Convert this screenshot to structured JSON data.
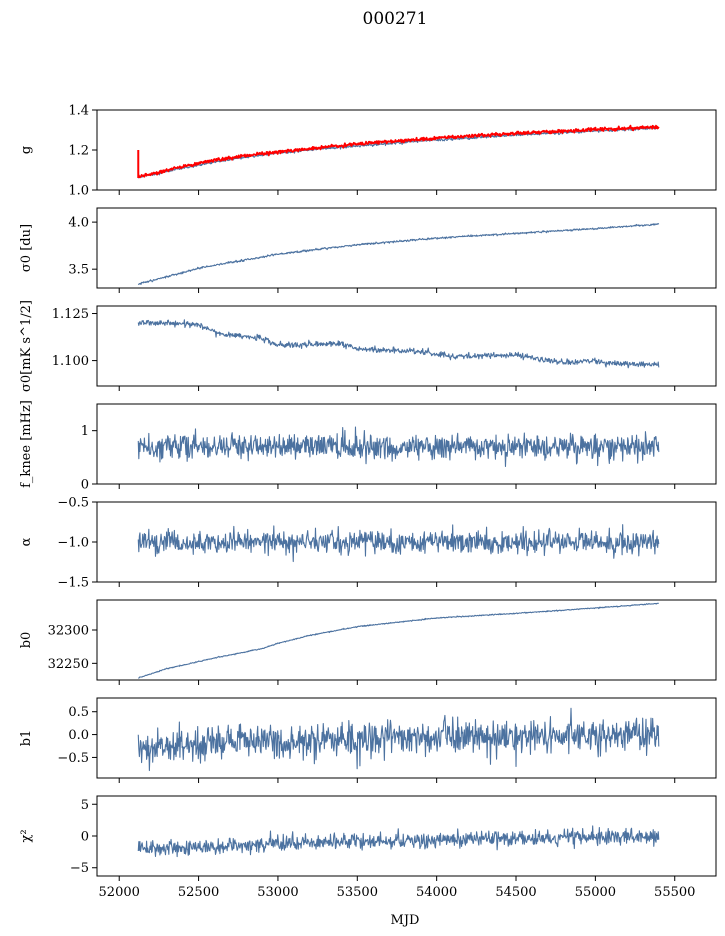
{
  "title": "000271",
  "xlabel": "MJD",
  "colors": {
    "series": "#4c72a0",
    "highlight": "#ff0000",
    "axes": "#000000"
  },
  "chart_data": {
    "type": "line",
    "title": "000271",
    "xlabel": "MJD",
    "xlim": [
      51860,
      55760
    ],
    "x_range": [
      52120,
      55400
    ],
    "xticks": [
      52000,
      52500,
      53000,
      53500,
      54000,
      54500,
      55000,
      55500
    ],
    "xtick_labels": [
      "52000",
      "52500",
      "53000",
      "53500",
      "54000",
      "54500",
      "55000",
      "55500"
    ],
    "panels": [
      {
        "ylabel": "g",
        "ylim": [
          1.0,
          1.4
        ],
        "yticks": [
          1.0,
          1.2,
          1.4
        ],
        "ytick_labels": [
          "1.0",
          "1.2",
          "1.4"
        ],
        "series": [
          {
            "x": [
              52120,
              52200,
              52400,
              52600,
              52800,
              53000,
              53200,
              53500,
              54000,
              54500,
              55000,
              55400
            ],
            "values": [
              1.065,
              1.075,
              1.11,
              1.14,
              1.165,
              1.185,
              1.2,
              1.22,
              1.25,
              1.275,
              1.295,
              1.31
            ],
            "noise": 0.003,
            "color": "blue"
          },
          {
            "x": [
              52120,
              52200,
              52400,
              52600,
              52800,
              53000,
              53200,
              53500,
              54000,
              54500,
              55000,
              55400
            ],
            "values": [
              1.068,
              1.08,
              1.118,
              1.148,
              1.172,
              1.19,
              1.207,
              1.23,
              1.26,
              1.283,
              1.302,
              1.315
            ],
            "noise": 0.004,
            "color": "red",
            "spike": {
              "x": 52120,
              "from": 1.06,
              "to": 1.2
            }
          }
        ]
      },
      {
        "ylabel": "σ0 [du]",
        "ylim": [
          3.3,
          4.15
        ],
        "yticks": [
          3.5,
          4.0
        ],
        "ytick_labels": [
          "3.5",
          "4.0"
        ],
        "series": [
          {
            "x": [
              52120,
              52300,
              52500,
              52800,
              53000,
              53500,
              54000,
              54500,
              55000,
              55400
            ],
            "values": [
              3.34,
              3.42,
              3.51,
              3.6,
              3.66,
              3.76,
              3.83,
              3.88,
              3.93,
              3.98
            ],
            "noise": 0.005,
            "color": "blue"
          }
        ]
      },
      {
        "ylabel": "σ0[mK s^1/2]",
        "ylim": [
          1.0865,
          1.129
        ],
        "yticks": [
          1.1,
          1.125
        ],
        "ytick_labels": [
          "1.100",
          "1.125"
        ],
        "series": [
          {
            "x": [
              52120,
              52500,
              52650,
              52900,
              53000,
              53400,
              53500,
              53900,
              54100,
              54500,
              54800,
              55000,
              55150,
              55400
            ],
            "values": [
              1.1205,
              1.119,
              1.114,
              1.112,
              1.108,
              1.109,
              1.106,
              1.105,
              1.102,
              1.103,
              1.099,
              1.1,
              1.098,
              1.098
            ],
            "noise": 0.0008,
            "color": "blue"
          }
        ]
      },
      {
        "ylabel": "f_knee [mHz]",
        "ylim": [
          0,
          1.5
        ],
        "yticks": [
          0,
          1
        ],
        "ytick_labels": [
          "0",
          "1"
        ],
        "series": [
          {
            "x": [
              52120,
              55400
            ],
            "values": [
              0.7,
              0.7
            ],
            "noise": 0.12,
            "color": "blue"
          }
        ]
      },
      {
        "ylabel": "α",
        "ylim": [
          -1.5,
          -0.5
        ],
        "yticks": [
          -1.5,
          -1.0,
          -0.5
        ],
        "ytick_labels": [
          "−1.5",
          "−1.0",
          "−0.5"
        ],
        "series": [
          {
            "x": [
              52120,
              55400
            ],
            "values": [
              -1.0,
              -1.0
            ],
            "noise": 0.07,
            "color": "blue"
          }
        ]
      },
      {
        "ylabel": "b0",
        "ylim": [
          32225,
          32345
        ],
        "yticks": [
          32250,
          32300
        ],
        "ytick_labels": [
          "32250",
          "32300"
        ],
        "series": [
          {
            "x": [
              52120,
              52300,
              52600,
              52900,
              53000,
              53200,
              53500,
              54000,
              54500,
              55000,
              55400
            ],
            "values": [
              32228,
              32242,
              32258,
              32272,
              32280,
              32292,
              32305,
              32318,
              32325,
              32333,
              32340
            ],
            "noise": 0.4,
            "color": "blue"
          }
        ]
      },
      {
        "ylabel": "b1",
        "ylim": [
          -0.95,
          0.8
        ],
        "yticks": [
          -0.5,
          0.0,
          0.5
        ],
        "ytick_labels": [
          "−0.5",
          "0.0",
          "0.5"
        ],
        "series": [
          {
            "x": [
              52120,
              53000,
              54000,
              55400
            ],
            "values": [
              -0.3,
              -0.15,
              -0.05,
              0.0
            ],
            "noise": 0.18,
            "color": "blue"
          }
        ]
      },
      {
        "ylabel": "χ²",
        "ylim": [
          -6.3,
          6.3
        ],
        "yticks": [
          -5,
          0,
          5
        ],
        "ytick_labels": [
          "−5",
          "0",
          "5"
        ],
        "series": [
          {
            "x": [
              52120,
              53000,
              54000,
              55400
            ],
            "values": [
              -2.0,
              -1.2,
              -0.6,
              0.0
            ],
            "noise": 0.6,
            "color": "blue"
          }
        ]
      }
    ]
  }
}
